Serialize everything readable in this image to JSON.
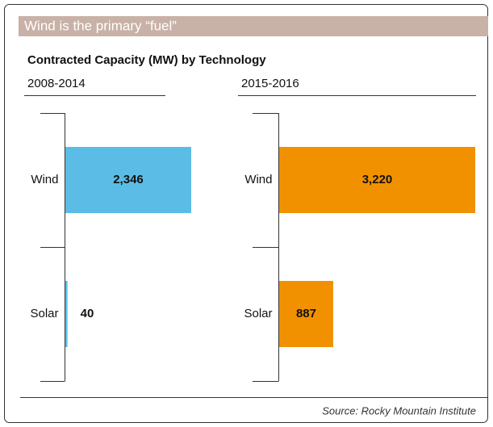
{
  "banner": "Wind is the primary “fuel”",
  "subtitle": "Contracted Capacity (MW) by Technology",
  "source": "Source: Rocky Mountain Institute",
  "chart_data": [
    {
      "type": "bar",
      "orientation": "horizontal",
      "title": "2008-2014",
      "categories": [
        "Wind",
        "Solar"
      ],
      "values": [
        2346,
        40
      ],
      "value_labels": [
        "2,346",
        "40"
      ],
      "color": "#5bbde5"
    },
    {
      "type": "bar",
      "orientation": "horizontal",
      "title": "2015-2016",
      "categories": [
        "Wind",
        "Solar"
      ],
      "values": [
        3220,
        887
      ],
      "value_labels": [
        "3,220",
        "887"
      ],
      "color": "#f29100"
    }
  ]
}
